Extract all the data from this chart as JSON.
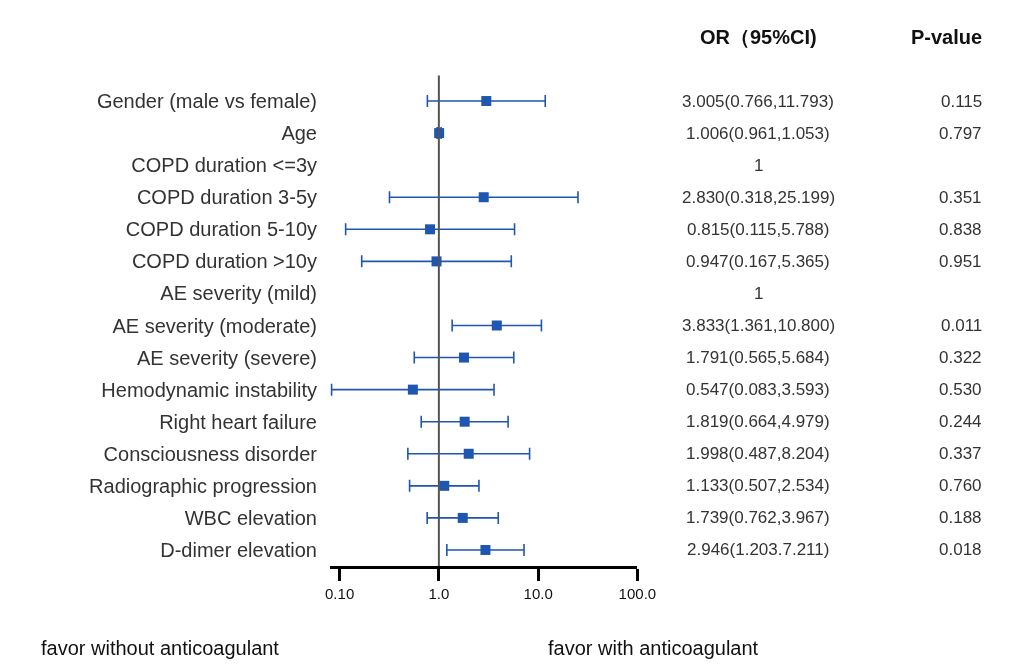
{
  "chart_data": {
    "type": "scatter",
    "orientation": "horizontal",
    "log": "x",
    "marker": "square",
    "categories": [
      "Gender (male vs female)",
      "Age",
      "COPD duration <=3y",
      "COPD duration 3-5y",
      "COPD duration 5-10y",
      "COPD duration >10y",
      "AE severity (mild)",
      "AE severity (moderate)",
      "AE severity (severe)",
      "Hemodynamic instability",
      "Right heart failure",
      "Consciousness disorder",
      "Radiographic progression",
      "WBC elevation",
      "D-dimer elevation"
    ],
    "series": [
      {
        "color": "#1f56b0",
        "values": [
          3.005,
          1.006,
          null,
          2.83,
          0.815,
          0.947,
          null,
          3.833,
          1.791,
          0.547,
          1.819,
          1.998,
          1.133,
          1.739,
          2.946
        ],
        "errors": [
          [
            0.766,
            11.793
          ],
          [
            0.961,
            1.053
          ],
          null,
          [
            0.318,
            25.199
          ],
          [
            0.115,
            5.788
          ],
          [
            0.167,
            5.365
          ],
          null,
          [
            1.361,
            10.8
          ],
          [
            0.565,
            5.684
          ],
          [
            0.083,
            3.593
          ],
          [
            0.664,
            4.979
          ],
          [
            0.487,
            8.204
          ],
          [
            0.507,
            2.534
          ],
          [
            0.762,
            3.967
          ],
          [
            1.203,
            7.211
          ]
        ],
        "value_labels": [
          "3.005(0.766,11.793)",
          "1.006(0.961,1.053)",
          "1",
          "2.830(0.318,25.199)",
          "0.815(0.115,5.788)",
          "0.947(0.167,5.365)",
          "1",
          "3.833(1.361,10.800)",
          "1.791(0.565,5.684)",
          "0.547(0.083,3.593)",
          "1.819(0.664,4.979)",
          "1.998(0.487,8.204)",
          "1.133(0.507,2.534)",
          "1.739(0.762,3.967)",
          "2.946(1.203.7.211)"
        ]
      }
    ],
    "xlim": [
      0.08,
      100
    ],
    "xticks": [
      {
        "value": 0.1,
        "label": "0.10"
      },
      {
        "value": 1,
        "label": "1.0"
      },
      {
        "value": 10,
        "label": "10.0"
      },
      {
        "value": 100,
        "label": "100.0"
      }
    ],
    "ref_lines": [
      {
        "axis": "x",
        "value": 1,
        "color": "#555555"
      }
    ],
    "annotations": [
      "OR（95%CI)",
      "P-value",
      "favor without anticoagulant",
      "favor with anticoagulant",
      "0.115",
      "0.797",
      "0.351",
      "0.838",
      "0.951",
      "0.011",
      "0.322",
      "0.530",
      "0.244",
      "0.337",
      "0.760",
      "0.188",
      "0.018"
    ]
  }
}
